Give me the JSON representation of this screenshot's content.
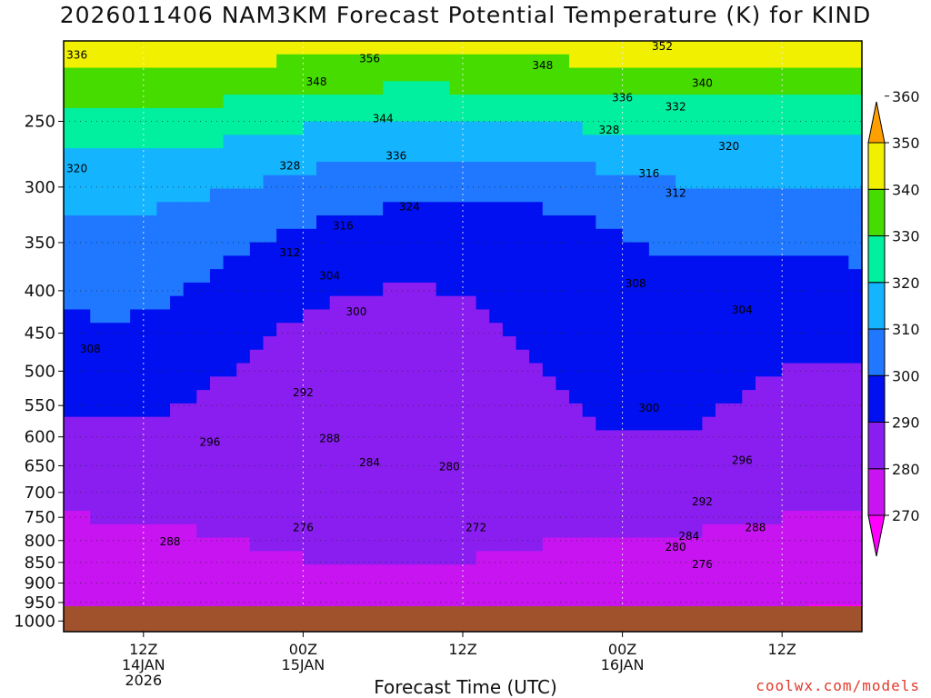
{
  "chart_data": {
    "type": "heatmap",
    "title": "2026011406 NAM3KM Forecast Potential Temperature (K) for KIND",
    "xlabel": "Forecast Time (UTC)",
    "ylabel": "",
    "credit": "coolwx.com/models",
    "y_scale": "log",
    "y_inverted": true,
    "pressure_ticks": [
      "250",
      "300",
      "350",
      "400",
      "450",
      "500",
      "550",
      "600",
      "650",
      "700",
      "750",
      "800",
      "850",
      "900",
      "950",
      "1000"
    ],
    "x_ticks": [
      {
        "hours": 6,
        "lines": [
          "12Z",
          "14JAN",
          "2026"
        ]
      },
      {
        "hours": 18,
        "lines": [
          "00Z",
          "15JAN"
        ]
      },
      {
        "hours": 30,
        "lines": [
          "12Z"
        ]
      },
      {
        "hours": 42,
        "lines": [
          "00Z",
          "16JAN"
        ]
      },
      {
        "hours": 54,
        "lines": [
          "12Z"
        ]
      }
    ],
    "x_range_hours": [
      0,
      60
    ],
    "y_range_hPa": [
      200,
      1030
    ],
    "grid": true,
    "colorbar": {
      "placement": "right",
      "levels": [
        270,
        280,
        290,
        300,
        310,
        320,
        330,
        340,
        350,
        360
      ],
      "labels": [
        "270",
        "280",
        "290",
        "300",
        "310",
        "320",
        "330",
        "340",
        "350",
        "360"
      ],
      "colors": [
        "#ff00ff",
        "#c814f0",
        "#8a1ef0",
        "#0010f0",
        "#1f78ff",
        "#14b4ff",
        "#00f0a0",
        "#46dc00",
        "#f0f000",
        "#ffa000"
      ]
    },
    "contour_labels": [
      {
        "value": "336",
        "x": 1.0,
        "p": 208
      },
      {
        "value": "356",
        "x": 23,
        "p": 210
      },
      {
        "value": "348",
        "x": 19,
        "p": 224
      },
      {
        "value": "344",
        "x": 24,
        "p": 248
      },
      {
        "value": "348",
        "x": 36,
        "p": 214
      },
      {
        "value": "352",
        "x": 45,
        "p": 203
      },
      {
        "value": "340",
        "x": 48,
        "p": 225
      },
      {
        "value": "336",
        "x": 42,
        "p": 234
      },
      {
        "value": "332",
        "x": 46,
        "p": 240
      },
      {
        "value": "328",
        "x": 41,
        "p": 256
      },
      {
        "value": "320",
        "x": 50,
        "p": 268
      },
      {
        "value": "336",
        "x": 25,
        "p": 275
      },
      {
        "value": "328",
        "x": 17,
        "p": 283
      },
      {
        "value": "316",
        "x": 44,
        "p": 289
      },
      {
        "value": "312",
        "x": 46,
        "p": 305
      },
      {
        "value": "324",
        "x": 26,
        "p": 317
      },
      {
        "value": "316",
        "x": 21,
        "p": 334
      },
      {
        "value": "320",
        "x": 1.0,
        "p": 285
      },
      {
        "value": "312",
        "x": 17,
        "p": 360
      },
      {
        "value": "304",
        "x": 20,
        "p": 384
      },
      {
        "value": "308",
        "x": 43,
        "p": 392
      },
      {
        "value": "304",
        "x": 51,
        "p": 422
      },
      {
        "value": "300",
        "x": 22,
        "p": 424
      },
      {
        "value": "308",
        "x": 2.0,
        "p": 470
      },
      {
        "value": "300",
        "x": 44,
        "p": 554
      },
      {
        "value": "292",
        "x": 18,
        "p": 531
      },
      {
        "value": "288",
        "x": 20,
        "p": 603
      },
      {
        "value": "296",
        "x": 11,
        "p": 609
      },
      {
        "value": "284",
        "x": 23,
        "p": 644
      },
      {
        "value": "280",
        "x": 29,
        "p": 652
      },
      {
        "value": "296",
        "x": 51,
        "p": 640
      },
      {
        "value": "292",
        "x": 48,
        "p": 718
      },
      {
        "value": "276",
        "x": 18,
        "p": 772
      },
      {
        "value": "272",
        "x": 31,
        "p": 772
      },
      {
        "value": "288",
        "x": 8,
        "p": 802
      },
      {
        "value": "284",
        "x": 47,
        "p": 790
      },
      {
        "value": "288",
        "x": 52,
        "p": 772
      },
      {
        "value": "280",
        "x": 46,
        "p": 815
      },
      {
        "value": "276",
        "x": 48,
        "p": 855
      }
    ]
  }
}
